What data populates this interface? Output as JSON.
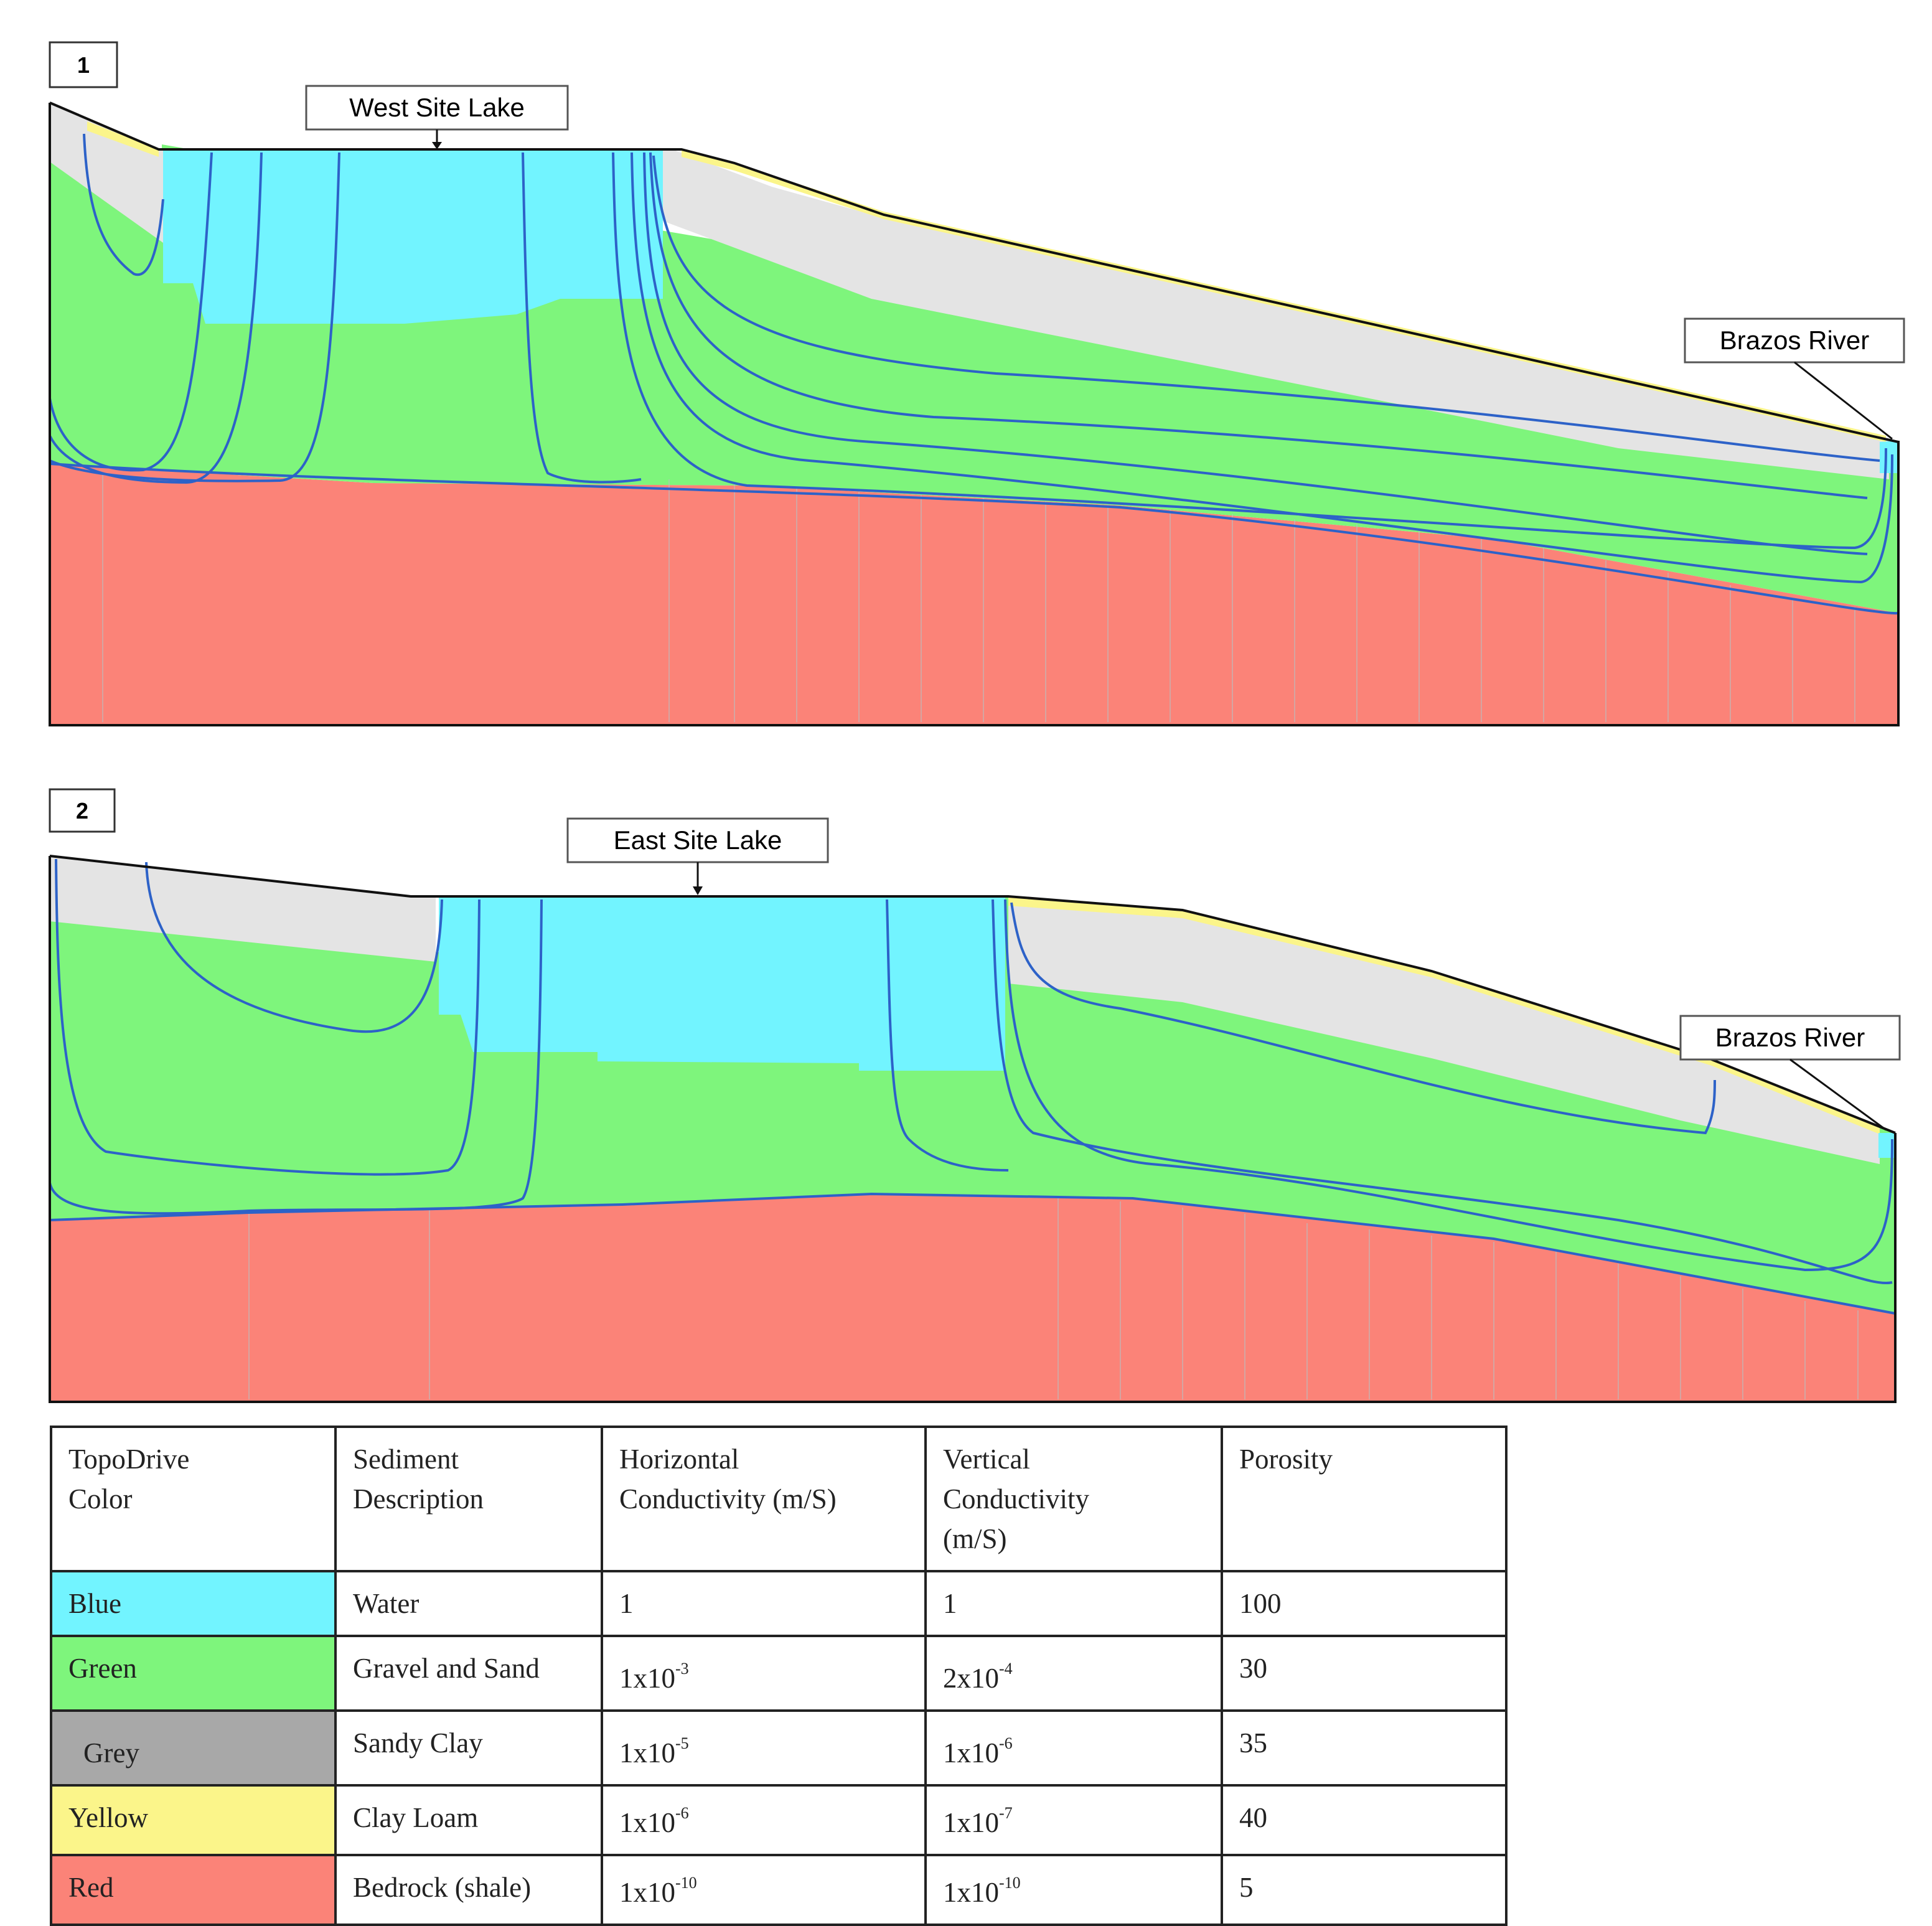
{
  "panel1": {
    "number": "1",
    "lake_label": "West Site Lake",
    "river_label": "Brazos River"
  },
  "panel2": {
    "number": "2",
    "lake_label": "East Site Lake",
    "river_label": "Brazos River"
  },
  "colors": {
    "water": "#72f4ff",
    "gravel_sand": "#7ef57c",
    "sandy_clay": "#e4e4e4",
    "clay_loam": "#fbf58a",
    "bedrock": "#fb8378",
    "flow_line": "#2d62c8",
    "legend_grey": "#a8a8a8"
  },
  "table": {
    "headers": [
      "TopoDrive\nColor",
      "Sediment\nDescription",
      "Horizontal\nConductivity  (m/S)",
      "Vertical\nConductivity\n(m/S)",
      "Porosity"
    ],
    "rows": [
      {
        "color": "Blue",
        "swatch": "#72f4ff",
        "description": "Water",
        "horizontal": "1",
        "vertical": "1",
        "porosity": "100"
      },
      {
        "color": "Green",
        "swatch": "#7ef57c",
        "description": "Gravel and Sand",
        "horizontal": "1x10",
        "horizontal_exp": "-3",
        "vertical": "2x10",
        "vertical_exp": "-4",
        "porosity": "30"
      },
      {
        "color": "Grey",
        "swatch": "#a8a8a8",
        "description": "Sandy Clay",
        "horizontal": "1x10",
        "horizontal_exp": "-5",
        "vertical": "1x10",
        "vertical_exp": "-6",
        "porosity": "35"
      },
      {
        "color": "Yellow",
        "swatch": "#fbf58a",
        "description": "Clay Loam",
        "horizontal": "1x10",
        "horizontal_exp": "-6",
        "vertical": "1x10",
        "vertical_exp": "-7",
        "porosity": "40"
      },
      {
        "color": "Red",
        "swatch": "#fb8378",
        "description": "Bedrock (shale)",
        "horizontal": "1x10",
        "horizontal_exp": "-10",
        "vertical": "1x10",
        "vertical_exp": "-10",
        "porosity": "5"
      }
    ]
  }
}
